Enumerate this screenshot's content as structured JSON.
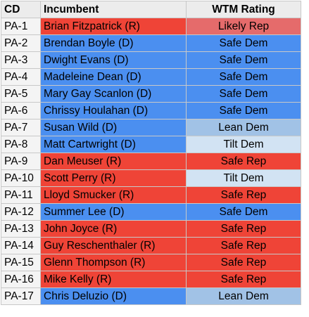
{
  "colors": {
    "R": "#ef4437",
    "D": "#4b8ff0",
    "Likely Rep": "#e56b6b",
    "Safe Rep": "#ef4437",
    "Safe Dem": "#4b8ff0",
    "Lean Dem": "#a1c2e6",
    "Tilt Dem": "#d2e3f3"
  },
  "headers": {
    "cd": "CD",
    "incumbent": "Incumbent",
    "rating": "WTM Rating"
  },
  "rows": [
    {
      "cd": "PA-1",
      "incumbent": "Brian Fitzpatrick (R)",
      "party": "R",
      "rating": "Likely Rep"
    },
    {
      "cd": "PA-2",
      "incumbent": "Brendan Boyle (D)",
      "party": "D",
      "rating": "Safe Dem"
    },
    {
      "cd": "PA-3",
      "incumbent": "Dwight Evans (D)",
      "party": "D",
      "rating": "Safe Dem"
    },
    {
      "cd": "PA-4",
      "incumbent": "Madeleine Dean (D)",
      "party": "D",
      "rating": "Safe Dem"
    },
    {
      "cd": "PA-5",
      "incumbent": "Mary Gay Scanlon (D)",
      "party": "D",
      "rating": "Safe Dem"
    },
    {
      "cd": "PA-6",
      "incumbent": "Chrissy Houlahan (D)",
      "party": "D",
      "rating": "Safe Dem"
    },
    {
      "cd": "PA-7",
      "incumbent": "Susan Wild (D)",
      "party": "D",
      "rating": "Lean Dem"
    },
    {
      "cd": "PA-8",
      "incumbent": "Matt Cartwright (D)",
      "party": "D",
      "rating": "Tilt Dem"
    },
    {
      "cd": "PA-9",
      "incumbent": "Dan Meuser (R)",
      "party": "R",
      "rating": "Safe Rep"
    },
    {
      "cd": "PA-10",
      "incumbent": "Scott Perry (R)",
      "party": "R",
      "rating": "Tilt Dem"
    },
    {
      "cd": "PA-11",
      "incumbent": "Lloyd Smucker (R)",
      "party": "R",
      "rating": "Safe Rep"
    },
    {
      "cd": "PA-12",
      "incumbent": "Summer Lee (D)",
      "party": "D",
      "rating": "Safe Dem"
    },
    {
      "cd": "PA-13",
      "incumbent": "John Joyce (R)",
      "party": "R",
      "rating": "Safe Rep"
    },
    {
      "cd": "PA-14",
      "incumbent": "Guy Reschenthaler (R)",
      "party": "R",
      "rating": "Safe Rep"
    },
    {
      "cd": "PA-15",
      "incumbent": "Glenn Thompson (R)",
      "party": "R",
      "rating": "Safe Rep"
    },
    {
      "cd": "PA-16",
      "incumbent": "Mike Kelly (R)",
      "party": "R",
      "rating": "Safe Rep"
    },
    {
      "cd": "PA-17",
      "incumbent": "Chris Deluzio (D)",
      "party": "D",
      "rating": "Lean Dem"
    }
  ]
}
